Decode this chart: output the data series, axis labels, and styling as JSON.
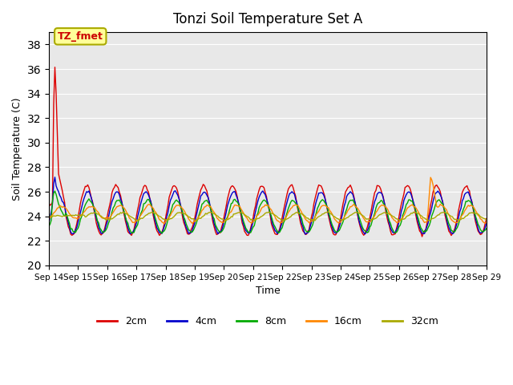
{
  "title": "Tonzi Soil Temperature Set A",
  "xlabel": "Time",
  "ylabel": "Soil Temperature (C)",
  "ylim": [
    20,
    39
  ],
  "yticks": [
    20,
    22,
    24,
    26,
    28,
    30,
    32,
    34,
    36,
    38
  ],
  "annotation_text": "TZ_fmet",
  "annotation_color": "#cc0000",
  "annotation_bg": "#ffff99",
  "annotation_border": "#aaaa00",
  "bg_color": "#e8e8e8",
  "series_colors": [
    "#dd0000",
    "#0000cc",
    "#00aa00",
    "#ff8800",
    "#aaaa00"
  ],
  "series_labels": [
    "2cm",
    "4cm",
    "8cm",
    "16cm",
    "32cm"
  ],
  "x_tick_labels": [
    "Sep 14",
    "Sep 15",
    "Sep 16",
    "Sep 17",
    "Sep 18",
    "Sep 19",
    "Sep 20",
    "Sep 21",
    "Sep 22",
    "Sep 23",
    "Sep 24",
    "Sep 25",
    "Sep 26",
    "Sep 27",
    "Sep 28",
    "Sep 29"
  ],
  "n_points": 361
}
